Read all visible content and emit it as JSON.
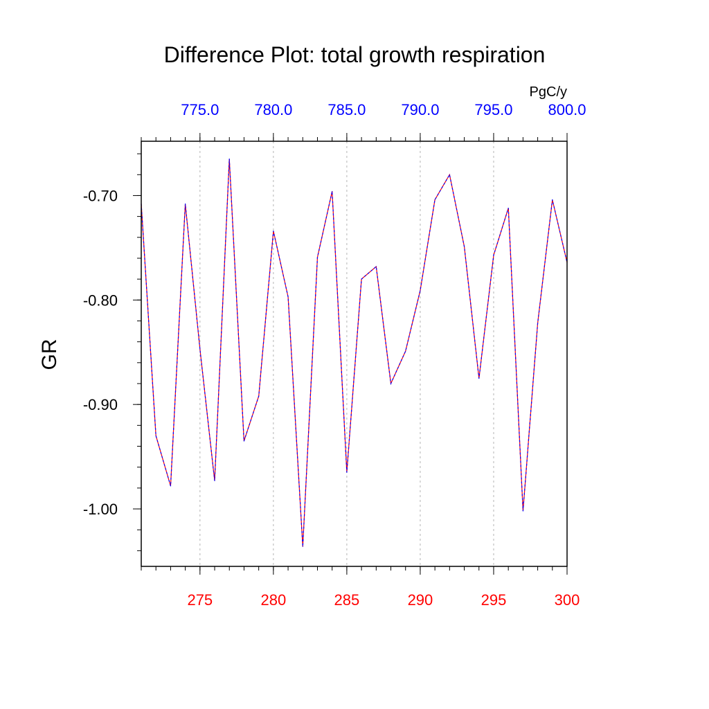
{
  "chart_data": {
    "type": "line",
    "title": "Difference Plot: total growth respiration",
    "ylabel": "GR",
    "units": "PgC/y",
    "xlim": [
      271,
      300
    ],
    "ylim": [
      -1.055,
      -0.648
    ],
    "x_ticks": [
      275,
      280,
      285,
      290,
      295,
      300
    ],
    "x_tick_labels": [
      "275",
      "280",
      "285",
      "290",
      "295",
      "300"
    ],
    "top_xlim": [
      771,
      800
    ],
    "top_x_ticks": [
      775,
      780,
      785,
      790,
      795,
      800
    ],
    "top_x_tick_labels": [
      "775.0",
      "780.0",
      "785.0",
      "790.0",
      "795.0",
      "800.0"
    ],
    "y_ticks": [
      -0.7,
      -0.8,
      -0.9,
      -1.0
    ],
    "y_tick_labels": [
      "-0.70",
      "-0.80",
      "-0.90",
      "-1.00"
    ],
    "grid_x": true,
    "colors": {
      "bottom_axis": "#ff0000",
      "top_axis": "#0000ff",
      "line_red": "#ff0000",
      "line_blue": "#0000ff",
      "grid": "#b4b4b4"
    },
    "series": [
      {
        "name": "difference",
        "x": [
          271,
          272,
          273,
          274,
          275,
          276,
          277,
          278,
          279,
          280,
          281,
          282,
          283,
          284,
          285,
          286,
          287,
          288,
          289,
          290,
          291,
          292,
          293,
          294,
          295,
          296,
          297,
          298,
          299,
          300
        ],
        "values": [
          -0.708,
          -0.93,
          -0.978,
          -0.708,
          -0.847,
          -0.973,
          -0.665,
          -0.935,
          -0.892,
          -0.734,
          -0.797,
          -1.036,
          -0.759,
          -0.696,
          -0.965,
          -0.78,
          -0.768,
          -0.88,
          -0.849,
          -0.791,
          -0.704,
          -0.68,
          -0.749,
          -0.875,
          -0.757,
          -0.712,
          -1.002,
          -0.822,
          -0.704,
          -0.764
        ]
      }
    ]
  }
}
